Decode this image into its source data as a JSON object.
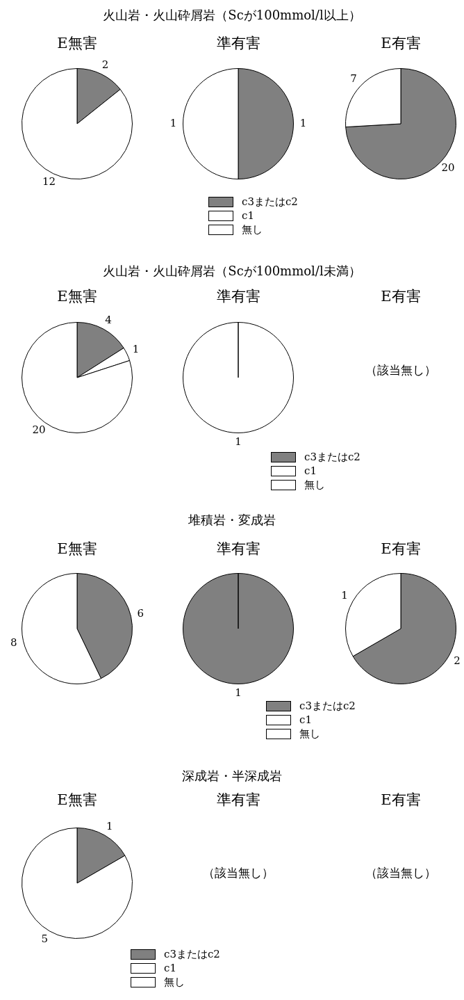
{
  "chart_data": [
    {
      "type": "other",
      "title": "火山岩・火山砕屑岩（Scが100mmol/l以上）"
    },
    {
      "type": "pie",
      "title": "E無害",
      "categories": [
        null,
        null,
        null
      ],
      "values": [
        2,
        0,
        12
      ],
      "colors": [
        "#808080",
        "#ffffff",
        "#ffffff"
      ],
      "value_labels": [
        "2",
        null,
        "12"
      ]
    },
    {
      "type": "pie",
      "title": "準有害",
      "categories": [
        "c3またはc2",
        "c1",
        "無し"
      ],
      "values": [
        1,
        0,
        1
      ],
      "colors": [
        "#808080",
        "#ffffff",
        "#ffffff"
      ],
      "value_labels": [
        "1",
        null,
        "1"
      ],
      "legend": "bottom"
    },
    {
      "type": "pie",
      "title": "E有害",
      "categories": [
        null,
        null,
        null
      ],
      "values": [
        20,
        0,
        7
      ],
      "colors": [
        "#808080",
        "#ffffff",
        "#ffffff"
      ],
      "value_labels": [
        "20",
        null,
        "7"
      ]
    },
    {
      "type": "other",
      "title": "火山岩・火山砕屑岩（Scが100mmol/l未満）"
    },
    {
      "type": "pie",
      "title": "E無害",
      "categories": [
        null,
        null,
        null
      ],
      "values": [
        4,
        1,
        20
      ],
      "colors": [
        "#808080",
        "#ffffff",
        "#ffffff"
      ],
      "value_labels": [
        "4",
        "1",
        "20"
      ]
    },
    {
      "type": "pie",
      "title": "準有害",
      "categories": [
        "c3またはc2",
        "c1",
        "無し"
      ],
      "values": [
        0,
        0,
        1
      ],
      "colors": [
        "#808080",
        "#ffffff",
        "#ffffff"
      ],
      "value_labels": [
        null,
        null,
        "1"
      ],
      "legend": "bottom"
    },
    {
      "type": "other",
      "title": "E有害",
      "annotations": [
        "（該当無し）"
      ]
    },
    {
      "type": "other",
      "title": "堆積岩・変成岩"
    },
    {
      "type": "pie",
      "title": "E無害",
      "categories": [
        null,
        null,
        null
      ],
      "values": [
        6,
        0,
        8
      ],
      "colors": [
        "#808080",
        "#ffffff",
        "#ffffff"
      ],
      "value_labels": [
        "6",
        null,
        "8"
      ]
    },
    {
      "type": "pie",
      "title": "準有害",
      "categories": [
        "c3またはc2",
        "c1",
        "無し"
      ],
      "values": [
        1,
        0,
        0
      ],
      "colors": [
        "#808080",
        "#ffffff",
        "#ffffff"
      ],
      "value_labels": [
        "1",
        null,
        null
      ],
      "legend": "bottom"
    },
    {
      "type": "pie",
      "title": "E有害",
      "categories": [
        null,
        null,
        null
      ],
      "values": [
        2,
        0,
        1
      ],
      "colors": [
        "#808080",
        "#ffffff",
        "#ffffff"
      ],
      "value_labels": [
        "2",
        null,
        "1"
      ]
    },
    {
      "type": "other",
      "title": "深成岩・半深成岩"
    },
    {
      "type": "pie",
      "title": "E無害",
      "categories": [
        "c3またはc2",
        "c1",
        "無し"
      ],
      "values": [
        1,
        0,
        5
      ],
      "colors": [
        "#808080",
        "#ffffff",
        "#ffffff"
      ],
      "value_labels": [
        "1",
        null,
        "5"
      ],
      "legend": "bottom"
    },
    {
      "type": "other",
      "title": "準有害",
      "annotations": [
        "（該当無し）"
      ]
    },
    {
      "type": "other",
      "title": "E有害",
      "annotations": [
        "（該当無し）"
      ]
    }
  ]
}
